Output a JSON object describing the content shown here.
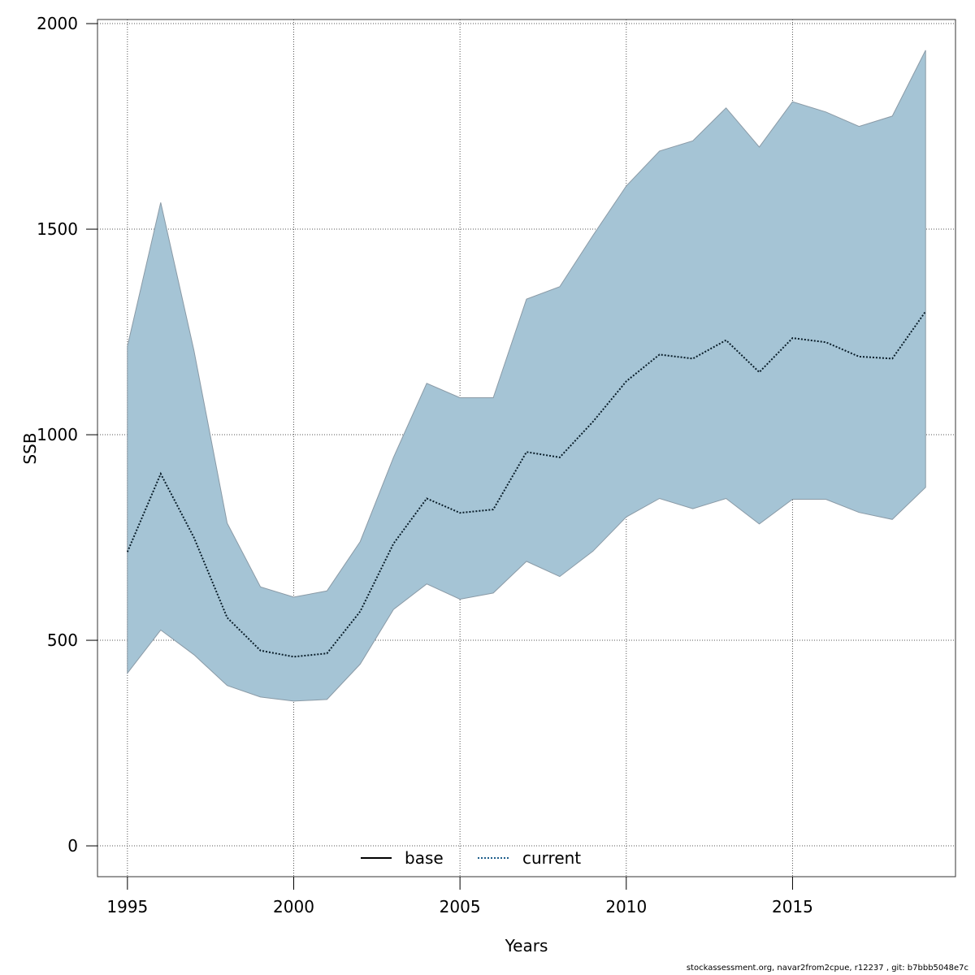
{
  "chart_data": {
    "type": "area",
    "title": "",
    "xlabel": "Years",
    "ylabel": "SSB",
    "xlim": [
      1994.1,
      2019.9
    ],
    "ylim": [
      -75,
      2010
    ],
    "x_ticks": [
      1995,
      2000,
      2005,
      2010,
      2015
    ],
    "y_ticks": [
      0,
      500,
      1000,
      1500,
      2000
    ],
    "grid": true,
    "legend_position": "bottom-center",
    "legend": [
      {
        "name": "base",
        "style": "solid",
        "color": "#000000"
      },
      {
        "name": "current",
        "style": "dotted",
        "color": "#1f5f8b"
      }
    ],
    "x": [
      1995,
      1996,
      1997,
      1998,
      1999,
      2000,
      2001,
      2002,
      2003,
      2004,
      2005,
      2006,
      2007,
      2008,
      2009,
      2010,
      2011,
      2012,
      2013,
      2014,
      2015,
      2016,
      2017,
      2018,
      2019
    ],
    "series": [
      {
        "name": "current",
        "type": "line",
        "style": "dotted",
        "values": [
          715,
          905,
          750,
          555,
          475,
          460,
          468,
          570,
          735,
          845,
          810,
          818,
          958,
          945,
          1032,
          1130,
          1195,
          1185,
          1230,
          1152,
          1235,
          1225,
          1190,
          1185,
          1300
        ]
      },
      {
        "name": "upper",
        "type": "band_upper",
        "values": [
          1215,
          1565,
          1205,
          785,
          630,
          605,
          620,
          740,
          945,
          1125,
          1090,
          1090,
          1330,
          1360,
          1485,
          1605,
          1690,
          1715,
          1795,
          1700,
          1810,
          1785,
          1750,
          1775,
          1935
        ]
      },
      {
        "name": "lower",
        "type": "band_lower",
        "values": [
          420,
          525,
          465,
          390,
          362,
          352,
          356,
          442,
          575,
          637,
          600,
          615,
          692,
          655,
          717,
          800,
          845,
          820,
          845,
          783,
          843,
          843,
          811,
          794,
          872
        ]
      }
    ],
    "band_color": "#a5c4d5",
    "band_edge_color": "#8a9aa6"
  },
  "footer_text": "stockassessment.org, navar2from2cpue, r12237 , git: b7bbb5048e7c"
}
